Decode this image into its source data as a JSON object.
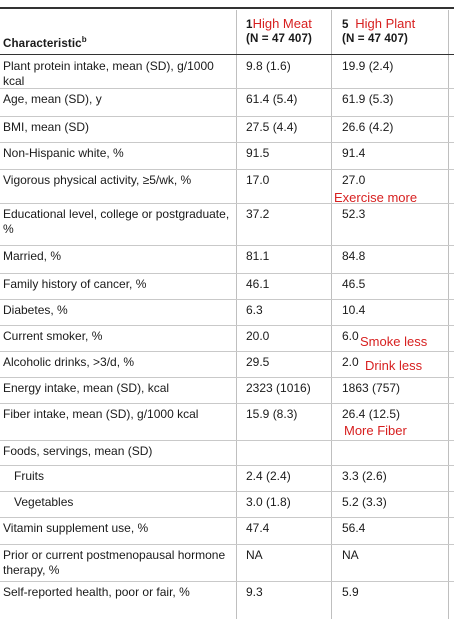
{
  "header": {
    "characteristic_label": "Characteristic",
    "characteristic_sup": "b",
    "q1_prefix": "1",
    "q1_annotation": "High Meat",
    "q1_n": "(N = 47 407)",
    "q5_prefix": "5",
    "q5_annotation": "High Plant",
    "q5_n": "(N = 47 407)"
  },
  "rows": [
    {
      "label": "Plant protein intake, mean (SD), g/1000 kcal",
      "q1": "9.8 (1.6)",
      "q5": "19.9 (2.4)"
    },
    {
      "label": "Age, mean (SD), y",
      "q1": "61.4 (5.4)",
      "q5": "61.9 (5.3)"
    },
    {
      "label": "BMI, mean (SD)",
      "q1": "27.5 (4.4)",
      "q5": "26.6 (4.2)"
    },
    {
      "label": "Non-Hispanic white, %",
      "q1": "91.5",
      "q5": "91.4"
    },
    {
      "label": "Vigorous physical activity, ≥5/wk, %",
      "q1": "17.0",
      "q5": "27.0"
    },
    {
      "label": "Educational level, college or postgraduate, %",
      "q1": "37.2",
      "q5": "52.3"
    },
    {
      "label": "Married, %",
      "q1": "81.1",
      "q5": "84.8"
    },
    {
      "label": "Family history of cancer, %",
      "q1": "46.1",
      "q5": "46.5"
    },
    {
      "label": "Diabetes, %",
      "q1": "6.3",
      "q5": "10.4"
    },
    {
      "label": "Current smoker, %",
      "q1": "20.0",
      "q5": "6.0"
    },
    {
      "label": "Alcoholic drinks, >3/d, %",
      "q1": "29.5",
      "q5": "2.0"
    },
    {
      "label": "Energy intake, mean (SD), kcal",
      "q1": "2323 (1016)",
      "q5": "1863 (757)"
    },
    {
      "label": "Fiber intake, mean (SD), g/1000 kcal",
      "q1": "15.9 (8.3)",
      "q5": "26.4 (12.5)"
    },
    {
      "label": "Foods, servings, mean (SD)",
      "q1": "",
      "q5": ""
    },
    {
      "label": "Fruits",
      "q1": "2.4 (2.4)",
      "q5": "3.3 (2.6)"
    },
    {
      "label": "Vegetables",
      "q1": "3.0 (1.8)",
      "q5": "5.2 (3.3)"
    },
    {
      "label": "Vitamin supplement use, %",
      "q1": "47.4",
      "q5": "56.4"
    },
    {
      "label": "Prior or current postmenopausal hormone therapy, %",
      "q1": "NA",
      "q5": "NA"
    },
    {
      "label": "Self-reported health, poor or fair, %",
      "q1": "9.3",
      "q5": "5.9"
    }
  ],
  "annotations": {
    "exercise": "Exercise more",
    "smoke": "Smoke less",
    "drink": "Drink less",
    "fiber": "More Fiber"
  },
  "colors": {
    "annotation": "#d71f1f",
    "rule": "#333333",
    "row_line": "#c9c9c9"
  }
}
